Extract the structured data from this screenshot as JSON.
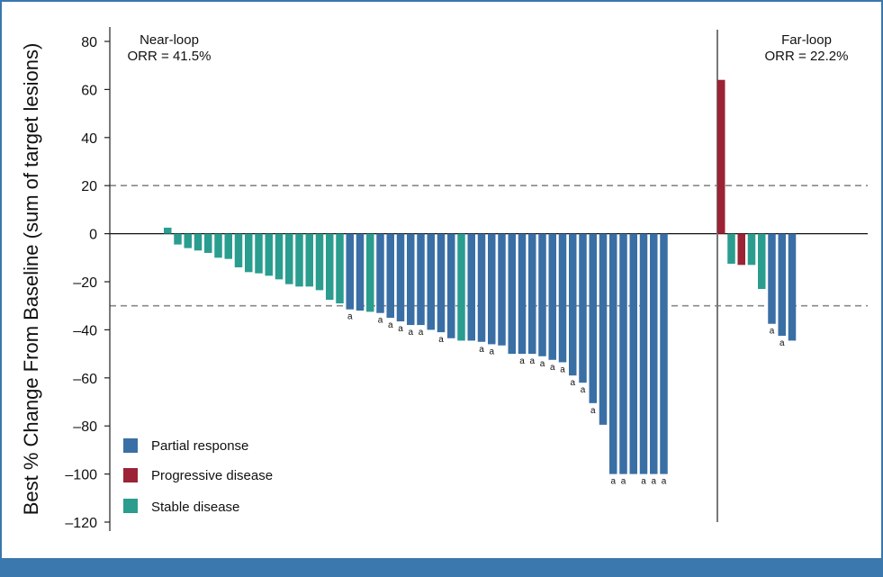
{
  "chart_data": {
    "type": "bar",
    "ylabel": "Best % Change From Baseline (sum of target lesions)",
    "xlabel": "",
    "ylim": [
      -120,
      80
    ],
    "yticks": [
      80,
      60,
      40,
      20,
      0,
      -20,
      -40,
      -60,
      -80,
      -100,
      -120
    ],
    "ytick_labels": [
      "80",
      "60",
      "40",
      "20",
      "0",
      "–20",
      "–40",
      "–60",
      "–80",
      "–100",
      "–120"
    ],
    "reference_lines": [
      20,
      -30
    ],
    "colors": {
      "partial_response": "#3a6fa5",
      "progressive_disease": "#9b2335",
      "stable_disease": "#2a9d8f",
      "reference_line": "#888888",
      "divider": "#777777"
    },
    "groups": [
      {
        "title": "Near-loop",
        "orr_label": "ORR = 41.5%",
        "bars": [
          {
            "value": 2.5,
            "response": "stable_disease",
            "mark": ""
          },
          {
            "value": -4.5,
            "response": "stable_disease",
            "mark": ""
          },
          {
            "value": -6,
            "response": "stable_disease",
            "mark": ""
          },
          {
            "value": -7,
            "response": "stable_disease",
            "mark": ""
          },
          {
            "value": -8,
            "response": "stable_disease",
            "mark": ""
          },
          {
            "value": -10,
            "response": "stable_disease",
            "mark": ""
          },
          {
            "value": -10.5,
            "response": "stable_disease",
            "mark": ""
          },
          {
            "value": -14,
            "response": "stable_disease",
            "mark": ""
          },
          {
            "value": -16,
            "response": "stable_disease",
            "mark": ""
          },
          {
            "value": -16.5,
            "response": "stable_disease",
            "mark": ""
          },
          {
            "value": -17.5,
            "response": "stable_disease",
            "mark": ""
          },
          {
            "value": -19,
            "response": "stable_disease",
            "mark": ""
          },
          {
            "value": -21,
            "response": "stable_disease",
            "mark": ""
          },
          {
            "value": -22,
            "response": "stable_disease",
            "mark": ""
          },
          {
            "value": -22,
            "response": "stable_disease",
            "mark": ""
          },
          {
            "value": -23.5,
            "response": "stable_disease",
            "mark": ""
          },
          {
            "value": -27.5,
            "response": "stable_disease",
            "mark": ""
          },
          {
            "value": -29,
            "response": "stable_disease",
            "mark": ""
          },
          {
            "value": -31.5,
            "response": "partial_response",
            "mark": "a"
          },
          {
            "value": -32,
            "response": "partial_response",
            "mark": ""
          },
          {
            "value": -32.5,
            "response": "stable_disease",
            "mark": ""
          },
          {
            "value": -33,
            "response": "partial_response",
            "mark": "a"
          },
          {
            "value": -35,
            "response": "partial_response",
            "mark": "a"
          },
          {
            "value": -36.5,
            "response": "partial_response",
            "mark": "a"
          },
          {
            "value": -38,
            "response": "partial_response",
            "mark": "a"
          },
          {
            "value": -38,
            "response": "partial_response",
            "mark": "a"
          },
          {
            "value": -40,
            "response": "partial_response",
            "mark": ""
          },
          {
            "value": -41,
            "response": "partial_response",
            "mark": "a"
          },
          {
            "value": -43.5,
            "response": "partial_response",
            "mark": ""
          },
          {
            "value": -44.5,
            "response": "stable_disease",
            "mark": ""
          },
          {
            "value": -44.5,
            "response": "partial_response",
            "mark": ""
          },
          {
            "value": -45,
            "response": "partial_response",
            "mark": "a"
          },
          {
            "value": -46,
            "response": "partial_response",
            "mark": "a"
          },
          {
            "value": -46.5,
            "response": "partial_response",
            "mark": ""
          },
          {
            "value": -50,
            "response": "partial_response",
            "mark": ""
          },
          {
            "value": -50,
            "response": "partial_response",
            "mark": "a"
          },
          {
            "value": -50,
            "response": "partial_response",
            "mark": "a"
          },
          {
            "value": -51,
            "response": "partial_response",
            "mark": "a"
          },
          {
            "value": -52.5,
            "response": "partial_response",
            "mark": "a"
          },
          {
            "value": -53.5,
            "response": "partial_response",
            "mark": "a"
          },
          {
            "value": -59,
            "response": "partial_response",
            "mark": "a"
          },
          {
            "value": -62,
            "response": "partial_response",
            "mark": "a"
          },
          {
            "value": -70.5,
            "response": "partial_response",
            "mark": "a"
          },
          {
            "value": -79.5,
            "response": "partial_response",
            "mark": ""
          },
          {
            "value": -100,
            "response": "partial_response",
            "mark": "a"
          },
          {
            "value": -100,
            "response": "partial_response",
            "mark": "a"
          },
          {
            "value": -100,
            "response": "partial_response",
            "mark": ""
          },
          {
            "value": -100,
            "response": "partial_response",
            "mark": "a"
          },
          {
            "value": -100,
            "response": "partial_response",
            "mark": "a"
          },
          {
            "value": -100,
            "response": "partial_response",
            "mark": "a"
          }
        ]
      },
      {
        "title": "Far-loop",
        "orr_label": "ORR = 22.2%",
        "bars": [
          {
            "value": 64,
            "response": "progressive_disease",
            "mark": ""
          },
          {
            "value": -12.5,
            "response": "stable_disease",
            "mark": ""
          },
          {
            "value": -13,
            "response": "progressive_disease",
            "mark": ""
          },
          {
            "value": -13,
            "response": "stable_disease",
            "mark": ""
          },
          {
            "value": -23,
            "response": "stable_disease",
            "mark": ""
          },
          {
            "value": -37.5,
            "response": "partial_response",
            "mark": "a"
          },
          {
            "value": -42.5,
            "response": "partial_response",
            "mark": "a"
          },
          {
            "value": -44.5,
            "response": "partial_response",
            "mark": ""
          }
        ]
      }
    ],
    "legend": [
      {
        "key": "partial_response",
        "label": "Partial response"
      },
      {
        "key": "progressive_disease",
        "label": "Progressive disease"
      },
      {
        "key": "stable_disease",
        "label": "Stable disease"
      }
    ],
    "legend_position": "bottom-left"
  }
}
